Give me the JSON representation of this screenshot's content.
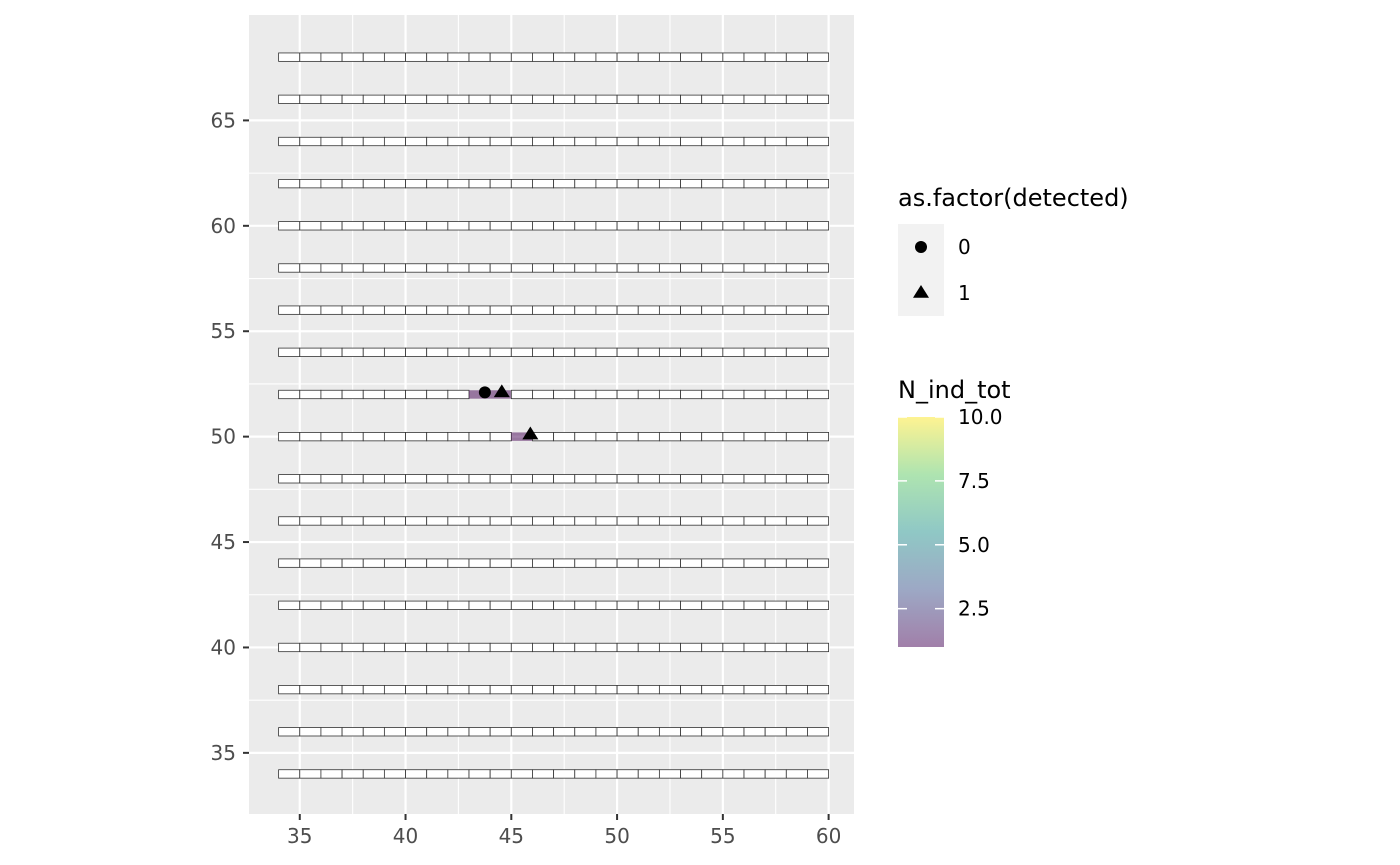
{
  "chart_data": {
    "type": "heatmap",
    "title": "",
    "xlabel": "",
    "ylabel": "",
    "xlim": [
      32.6,
      61.2
    ],
    "ylim": [
      32.1,
      70.0
    ],
    "x_ticks": [
      35,
      40,
      45,
      50,
      55,
      60
    ],
    "y_ticks": [
      35,
      40,
      45,
      50,
      55,
      60,
      65
    ],
    "grid": true,
    "transect_rows_y": [
      34,
      36,
      38,
      40,
      42,
      44,
      46,
      48,
      50,
      52,
      54,
      56,
      58,
      60,
      62,
      64,
      66,
      68
    ],
    "transect_x_range": [
      34,
      60
    ],
    "cell_width": 1,
    "cell_height": 0.4,
    "filled_cells": [
      {
        "x": 43.5,
        "y": 52,
        "N_ind_tot": 1
      },
      {
        "x": 44.5,
        "y": 52,
        "N_ind_tot": 1
      },
      {
        "x": 45.5,
        "y": 50,
        "N_ind_tot": 1
      }
    ],
    "points": [
      {
        "x": 43.75,
        "y": 52.1,
        "detected": "0"
      },
      {
        "x": 44.55,
        "y": 52.1,
        "detected": "1"
      },
      {
        "x": 45.9,
        "y": 50.1,
        "detected": "1"
      }
    ],
    "legend_shape": {
      "title": "as.factor(detected)",
      "entries": [
        {
          "label": "0",
          "shape": "circle"
        },
        {
          "label": "1",
          "shape": "triangle"
        }
      ]
    },
    "legend_fill": {
      "title": "N_ind_tot",
      "range": [
        1,
        10
      ],
      "ticks": [
        {
          "value": 2.5,
          "label": "2.5"
        },
        {
          "value": 5.0,
          "label": "5.0"
        },
        {
          "value": 7.5,
          "label": "7.5"
        },
        {
          "value": 10.0,
          "label": "10.0"
        }
      ],
      "colors": [
        "#440154",
        "#3b528b",
        "#21918c",
        "#5ec962",
        "#fde725"
      ],
      "alpha": 0.5
    },
    "colors": {
      "panel_background": "#ebebeb",
      "grid_major": "#ffffff",
      "cell_border": "#333333",
      "cell_fill": "#ffffff",
      "point": "#000000"
    }
  }
}
